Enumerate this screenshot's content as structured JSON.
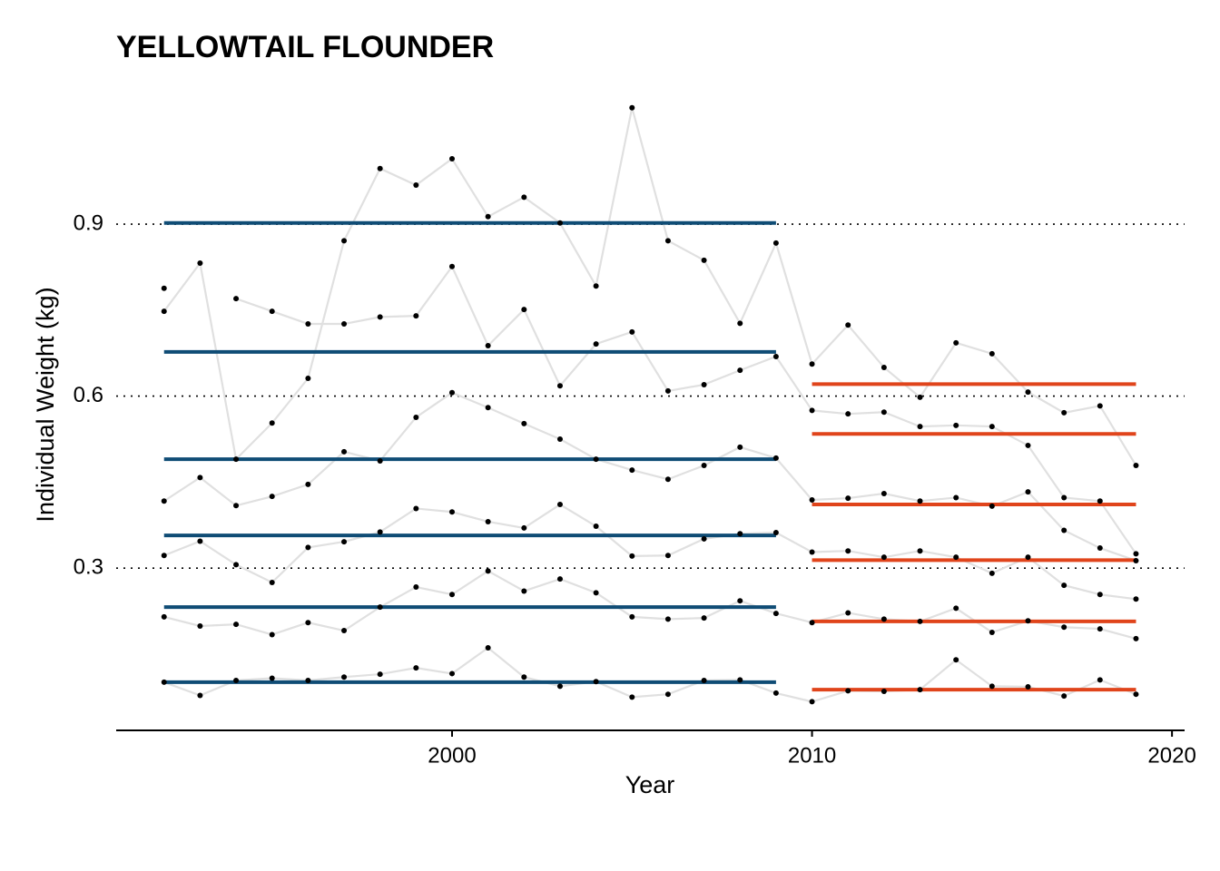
{
  "chart_data": {
    "type": "line",
    "title": "YELLOWTAIL FLOUNDER",
    "x_label": "Year",
    "y_label": "Individual Weight (kg)",
    "x": [
      1992,
      1993,
      1994,
      1995,
      1996,
      1997,
      1998,
      1999,
      2000,
      2001,
      2002,
      2003,
      2004,
      2005,
      2006,
      2007,
      2008,
      2009,
      2010,
      2011,
      2012,
      2013,
      2014,
      2015,
      2016,
      2017,
      2018,
      2019
    ],
    "xlim": [
      1990.67,
      2020.35
    ],
    "xticks": [
      2000,
      2010,
      2020
    ],
    "ylim": [
      0.017,
      1.12
    ],
    "yticks": [
      0.3,
      0.6,
      0.9
    ],
    "grid": true,
    "line_color": "#e0e0e0",
    "point_color": "#000000",
    "periods": [
      {
        "start": 1992,
        "end": 2009,
        "color": "#0f4c75"
      },
      {
        "start": 2010,
        "end": 2019,
        "color": "#e0441b"
      }
    ],
    "series": [
      {
        "values": [
          0.748,
          0.832,
          0.49,
          0.553,
          0.631,
          0.871,
          0.997,
          0.968,
          1.014,
          0.913,
          0.947,
          0.902,
          0.792,
          1.103,
          0.871,
          0.837,
          0.727,
          0.867,
          0.656,
          0.724,
          0.65,
          0.598,
          0.693,
          0.674,
          0.607,
          0.571,
          0.583,
          0.479
        ],
        "means": [
          0.902,
          0.621
        ]
      },
      {
        "values": [
          0.788,
          null,
          0.77,
          0.748,
          0.726,
          0.726,
          0.738,
          0.74,
          0.826,
          0.688,
          0.751,
          0.618,
          0.691,
          0.712,
          0.609,
          0.62,
          0.645,
          0.669,
          0.575,
          0.569,
          0.572,
          0.547,
          0.549,
          0.547,
          0.514,
          0.423,
          0.417,
          0.325
        ],
        "means": [
          0.677,
          0.534
        ]
      },
      {
        "values": [
          0.417,
          0.458,
          0.409,
          0.425,
          0.446,
          0.503,
          0.487,
          0.563,
          0.606,
          0.58,
          0.552,
          0.525,
          0.49,
          0.471,
          0.455,
          0.479,
          0.511,
          0.492,
          0.419,
          0.422,
          0.43,
          0.417,
          0.423,
          0.408,
          0.433,
          0.366,
          0.335,
          0.313
        ],
        "means": [
          0.49,
          0.411
        ]
      },
      {
        "values": [
          0.322,
          0.347,
          0.306,
          0.275,
          0.336,
          0.346,
          0.363,
          0.404,
          0.398,
          0.381,
          0.37,
          0.411,
          0.373,
          0.321,
          0.322,
          0.351,
          0.36,
          0.362,
          0.328,
          0.33,
          0.319,
          0.33,
          0.319,
          0.291,
          0.319,
          0.27,
          0.254,
          0.246
        ],
        "means": [
          0.357,
          0.314
        ]
      },
      {
        "values": [
          0.215,
          0.199,
          0.202,
          0.184,
          0.205,
          0.191,
          0.232,
          0.267,
          0.254,
          0.295,
          0.26,
          0.281,
          0.257,
          0.215,
          0.211,
          0.213,
          0.243,
          0.221,
          0.205,
          0.222,
          0.211,
          0.207,
          0.23,
          0.188,
          0.208,
          0.197,
          0.194,
          0.177
        ],
        "means": [
          0.232,
          0.207
        ]
      },
      {
        "values": [
          0.101,
          0.078,
          0.104,
          0.108,
          0.104,
          0.11,
          0.115,
          0.126,
          0.116,
          0.161,
          0.11,
          0.094,
          0.102,
          0.075,
          0.08,
          0.104,
          0.105,
          0.082,
          0.067,
          0.086,
          0.085,
          0.088,
          0.14,
          0.094,
          0.093,
          0.077,
          0.105,
          0.08
        ],
        "means": [
          0.101,
          0.088
        ]
      }
    ]
  }
}
